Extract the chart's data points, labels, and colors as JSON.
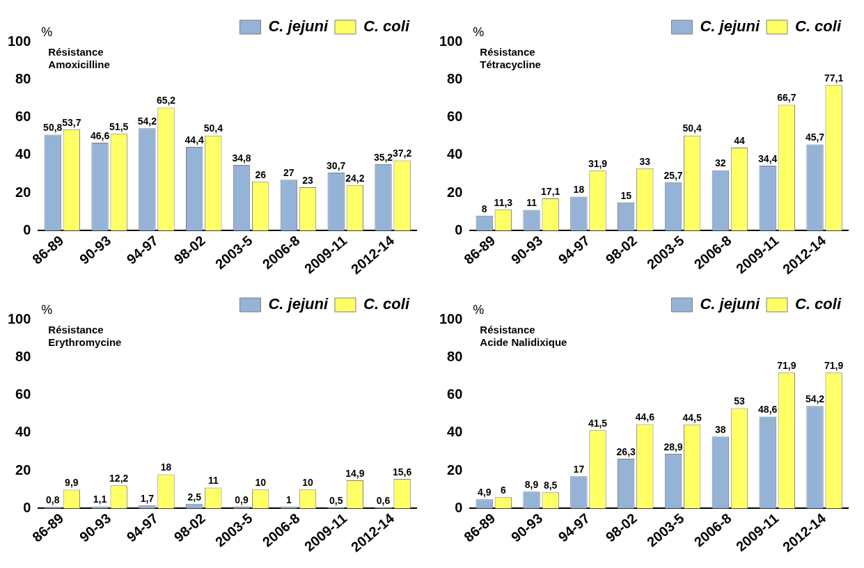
{
  "chart_data": [
    {
      "type": "bar",
      "title": "Résistance Amoxicilline",
      "ylabel": "%",
      "categories": [
        "86-89",
        "90-93",
        "94-97",
        "98-02",
        "2003-5",
        "2006-8",
        "2009-11",
        "2012-14"
      ],
      "ylim": [
        0,
        100
      ],
      "yticks": [
        0,
        20,
        40,
        60,
        80,
        100
      ],
      "grid": false,
      "legend": "top right",
      "series": [
        {
          "name": "C. jejuni",
          "color": "#95b3d7",
          "values": [
            50.8,
            46.6,
            54.2,
            44.4,
            34.8,
            27,
            30.7,
            35.2
          ],
          "value_labels": [
            "50,8",
            "46,6",
            "54,2",
            "44,4",
            "34,8",
            "27",
            "30,7",
            "35,2"
          ]
        },
        {
          "name": "C. coli",
          "color": "#ffff66",
          "values": [
            53.7,
            51.5,
            65.2,
            50.4,
            26,
            23,
            24.2,
            37.2
          ],
          "value_labels": [
            "53,7",
            "51,5",
            "65,2",
            "50,4",
            "26",
            "23",
            "24,2",
            "37,2"
          ]
        }
      ]
    },
    {
      "type": "bar",
      "title": "Résistance Tétracycline",
      "ylabel": "%",
      "categories": [
        "86-89",
        "90-93",
        "94-97",
        "98-02",
        "2003-5",
        "2006-8",
        "2009-11",
        "2012-14"
      ],
      "ylim": [
        0,
        100
      ],
      "yticks": [
        0,
        20,
        40,
        60,
        80,
        100
      ],
      "grid": false,
      "legend": "top right",
      "series": [
        {
          "name": "C. jejuni",
          "color": "#95b3d7",
          "values": [
            8,
            11,
            18,
            15,
            25.7,
            32,
            34.4,
            45.7
          ],
          "value_labels": [
            "8",
            "11",
            "18",
            "15",
            "25,7",
            "32",
            "34,4",
            "45,7"
          ]
        },
        {
          "name": "C. coli",
          "color": "#ffff66",
          "values": [
            11.3,
            17.1,
            31.9,
            33,
            50.4,
            44,
            66.7,
            77.1
          ],
          "value_labels": [
            "11,3",
            "17,1",
            "31,9",
            "33",
            "50,4",
            "44",
            "66,7",
            "77,1"
          ]
        }
      ]
    },
    {
      "type": "bar",
      "title": "Résistance Erythromycine",
      "ylabel": "%",
      "categories": [
        "86-89",
        "90-93",
        "94-97",
        "98-02",
        "2003-5",
        "2006-8",
        "2009-11",
        "2012-14"
      ],
      "ylim": [
        0,
        100
      ],
      "yticks": [
        0,
        20,
        40,
        60,
        80,
        100
      ],
      "grid": false,
      "legend": "top right",
      "series": [
        {
          "name": "C. jejuni",
          "color": "#95b3d7",
          "values": [
            0.8,
            1.1,
            1.7,
            2.5,
            0.9,
            1,
            0.5,
            0.6
          ],
          "value_labels": [
            "0,8",
            "1,1",
            "1,7",
            "2,5",
            "0,9",
            "1",
            "0,5",
            "0,6"
          ]
        },
        {
          "name": "C. coli",
          "color": "#ffff66",
          "values": [
            9.9,
            12.2,
            18,
            11,
            10,
            10,
            14.9,
            15.6
          ],
          "value_labels": [
            "9,9",
            "12,2",
            "18",
            "11",
            "10",
            "10",
            "14,9",
            "15,6"
          ]
        }
      ]
    },
    {
      "type": "bar",
      "title": "Résistance Acide Nalidixique",
      "ylabel": "%",
      "categories": [
        "86-89",
        "90-93",
        "94-97",
        "98-02",
        "2003-5",
        "2006-8",
        "2009-11",
        "2012-14"
      ],
      "ylim": [
        0,
        100
      ],
      "yticks": [
        0,
        20,
        40,
        60,
        80,
        100
      ],
      "grid": false,
      "legend": "top right",
      "series": [
        {
          "name": "C. jejuni",
          "color": "#95b3d7",
          "values": [
            4.9,
            8.9,
            17,
            26.3,
            28.9,
            38,
            48.6,
            54.2
          ],
          "value_labels": [
            "4,9",
            "8,9",
            "17",
            "26,3",
            "28,9",
            "38",
            "48,6",
            "54,2"
          ]
        },
        {
          "name": "C. coli",
          "color": "#ffff66",
          "values": [
            6,
            8.5,
            41.5,
            44.6,
            44.5,
            53,
            71.9,
            71.9
          ],
          "value_labels": [
            "6",
            "8,5",
            "41,5",
            "44,6",
            "44,5",
            "53",
            "71,9",
            "71,9"
          ]
        }
      ]
    }
  ]
}
